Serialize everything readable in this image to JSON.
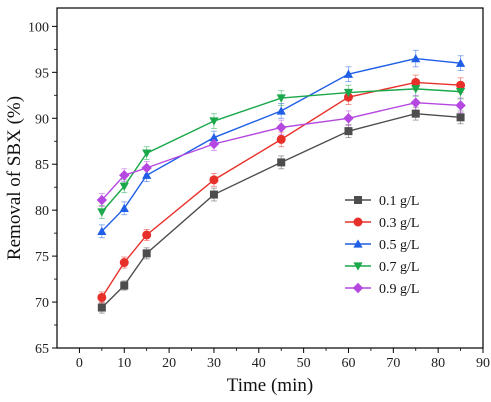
{
  "chart_data": {
    "type": "line",
    "title": "",
    "xlabel": "Time (min)",
    "ylabel": "Removal of SBX (%)",
    "xlim": [
      -5,
      90
    ],
    "ylim": [
      65,
      102
    ],
    "xticks": [
      0,
      10,
      20,
      30,
      40,
      50,
      60,
      70,
      80,
      90
    ],
    "yticks": [
      65,
      70,
      75,
      80,
      85,
      90,
      95,
      100
    ],
    "x": [
      5,
      10,
      15,
      30,
      45,
      60,
      75,
      85
    ],
    "grid": false,
    "legend_position": "bottom-right",
    "series": [
      {
        "name": "0.1 g/L",
        "color": "#4d4d4d",
        "marker": "square",
        "values": [
          69.4,
          71.8,
          75.3,
          81.7,
          85.2,
          88.6,
          90.5,
          90.1
        ],
        "errors": [
          0.6,
          0.5,
          0.6,
          0.7,
          0.7,
          0.7,
          0.7,
          0.7
        ]
      },
      {
        "name": "0.3 g/L",
        "color": "#e8302a",
        "marker": "circle",
        "values": [
          70.5,
          74.3,
          77.3,
          83.3,
          87.7,
          92.3,
          93.9,
          93.6
        ],
        "errors": [
          0.6,
          0.6,
          0.6,
          0.7,
          0.8,
          0.8,
          0.8,
          0.8
        ]
      },
      {
        "name": "0.5 g/L",
        "color": "#1f5ee6",
        "marker": "triangle-up",
        "values": [
          77.7,
          80.2,
          83.8,
          87.9,
          90.8,
          94.8,
          96.5,
          96.0
        ],
        "errors": [
          0.7,
          0.7,
          0.7,
          0.7,
          0.8,
          0.8,
          0.9,
          0.8
        ]
      },
      {
        "name": "0.7 g/L",
        "color": "#1aa84a",
        "marker": "triangle-down",
        "values": [
          79.8,
          82.6,
          86.2,
          89.7,
          92.2,
          92.8,
          93.2,
          92.9
        ],
        "errors": [
          0.7,
          0.7,
          0.7,
          0.8,
          0.8,
          0.8,
          0.8,
          0.8
        ]
      },
      {
        "name": "0.9 g/L",
        "color": "#b548e0",
        "marker": "diamond",
        "values": [
          81.1,
          83.8,
          84.6,
          87.2,
          89.0,
          90.0,
          91.7,
          91.4
        ],
        "errors": [
          0.7,
          0.7,
          0.7,
          0.7,
          0.8,
          0.8,
          0.8,
          0.8
        ]
      }
    ]
  }
}
